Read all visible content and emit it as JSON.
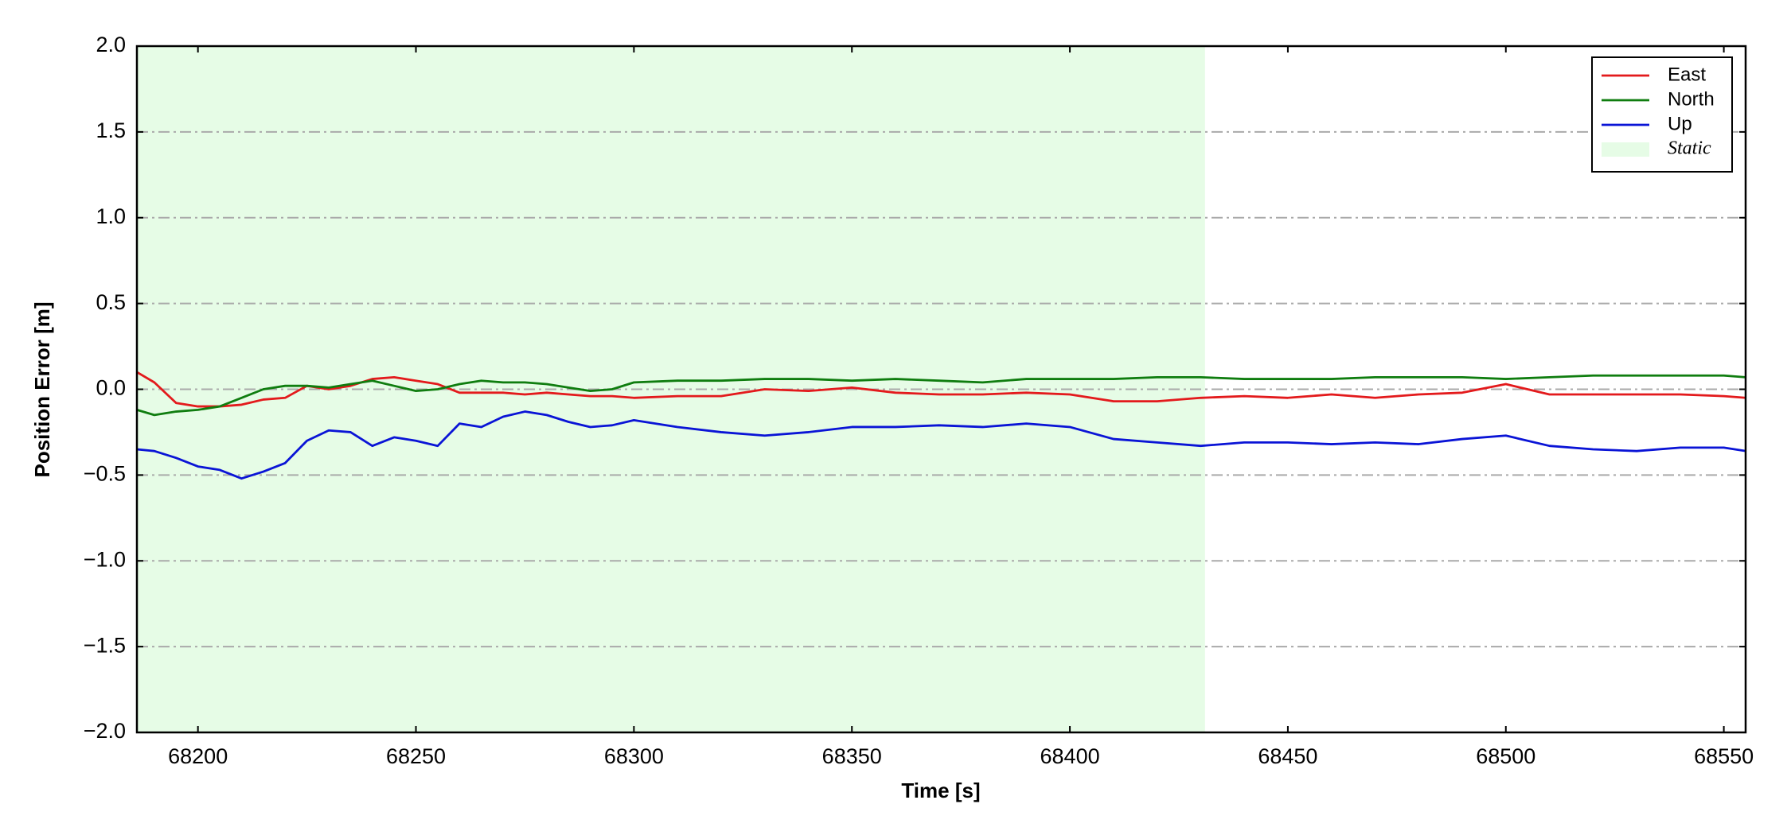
{
  "chart_data": {
    "type": "line",
    "xlabel": "Time [s]",
    "ylabel": "Position Error [m]",
    "x": [
      68186,
      68190,
      68195,
      68200,
      68205,
      68210,
      68215,
      68220,
      68225,
      68230,
      68235,
      68240,
      68245,
      68250,
      68255,
      68260,
      68265,
      68270,
      68275,
      68280,
      68285,
      68290,
      68295,
      68300,
      68310,
      68320,
      68330,
      68340,
      68350,
      68360,
      68370,
      68380,
      68390,
      68400,
      68410,
      68420,
      68430,
      68440,
      68450,
      68460,
      68470,
      68480,
      68490,
      68500,
      68510,
      68520,
      68530,
      68540,
      68550,
      68555
    ],
    "series": [
      {
        "name": "East",
        "color": "#e31a1c",
        "values": [
          0.1,
          0.04,
          -0.08,
          -0.1,
          -0.1,
          -0.09,
          -0.06,
          -0.05,
          0.02,
          0.0,
          0.02,
          0.06,
          0.07,
          0.05,
          0.03,
          -0.02,
          -0.02,
          -0.02,
          -0.03,
          -0.02,
          -0.03,
          -0.04,
          -0.04,
          -0.05,
          -0.04,
          -0.04,
          0.0,
          -0.01,
          0.01,
          -0.02,
          -0.03,
          -0.03,
          -0.02,
          -0.03,
          -0.07,
          -0.07,
          -0.05,
          -0.04,
          -0.05,
          -0.03,
          -0.05,
          -0.03,
          -0.02,
          0.03,
          -0.03,
          -0.03,
          -0.03,
          -0.03,
          -0.04,
          -0.05
        ]
      },
      {
        "name": "North",
        "color": "#0f7d0f",
        "values": [
          -0.12,
          -0.15,
          -0.13,
          -0.12,
          -0.1,
          -0.05,
          0.0,
          0.02,
          0.02,
          0.01,
          0.03,
          0.05,
          0.02,
          -0.01,
          0.0,
          0.03,
          0.05,
          0.04,
          0.04,
          0.03,
          0.01,
          -0.01,
          0.0,
          0.04,
          0.05,
          0.05,
          0.06,
          0.06,
          0.05,
          0.06,
          0.05,
          0.04,
          0.06,
          0.06,
          0.06,
          0.07,
          0.07,
          0.06,
          0.06,
          0.06,
          0.07,
          0.07,
          0.07,
          0.06,
          0.07,
          0.08,
          0.08,
          0.08,
          0.08,
          0.07
        ]
      },
      {
        "name": "Up",
        "color": "#0a14d6",
        "values": [
          -0.35,
          -0.36,
          -0.4,
          -0.45,
          -0.47,
          -0.52,
          -0.48,
          -0.43,
          -0.3,
          -0.24,
          -0.25,
          -0.33,
          -0.28,
          -0.3,
          -0.33,
          -0.2,
          -0.22,
          -0.16,
          -0.13,
          -0.15,
          -0.19,
          -0.22,
          -0.21,
          -0.18,
          -0.22,
          -0.25,
          -0.27,
          -0.25,
          -0.22,
          -0.22,
          -0.21,
          -0.22,
          -0.2,
          -0.22,
          -0.29,
          -0.31,
          -0.33,
          -0.31,
          -0.31,
          -0.32,
          -0.31,
          -0.32,
          -0.29,
          -0.27,
          -0.33,
          -0.35,
          -0.36,
          -0.34,
          -0.34,
          -0.36
        ]
      }
    ],
    "shaded_region": {
      "name": "Static",
      "xlim": [
        68186,
        68431
      ],
      "color": "#e6fce6"
    },
    "xlim": [
      68186,
      68555
    ],
    "ylim": [
      -2,
      2
    ],
    "xticks": [
      68200,
      68250,
      68300,
      68350,
      68400,
      68450,
      68500,
      68550
    ],
    "yticks": [
      {
        "value": -2,
        "label": "−2.0"
      },
      {
        "value": -1.5,
        "label": "−1.5"
      },
      {
        "value": -1,
        "label": "−1.0"
      },
      {
        "value": -0.5,
        "label": "−0.5"
      },
      {
        "value": 0,
        "label": "0.0"
      },
      {
        "value": 0.5,
        "label": "0.5"
      },
      {
        "value": 1,
        "label": "1.0"
      },
      {
        "value": 1.5,
        "label": "1.5"
      },
      {
        "value": 2,
        "label": "2.0"
      }
    ],
    "grid": true,
    "legend": "upper right"
  }
}
